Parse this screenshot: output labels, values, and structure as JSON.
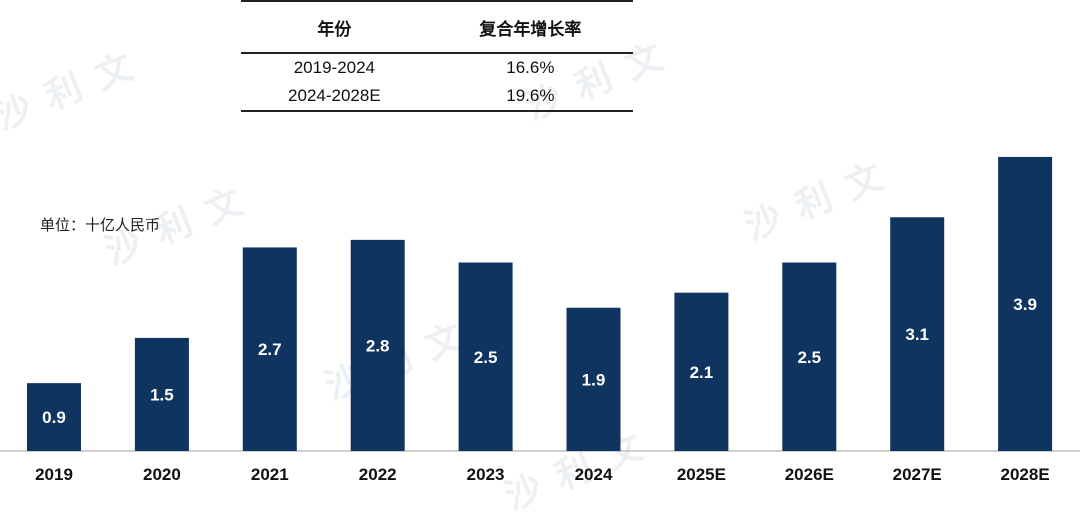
{
  "cagr_table": {
    "headers": [
      "年份",
      "复合年增长率"
    ],
    "rows": [
      [
        "2019-2024",
        "16.6%"
      ],
      [
        "2024-2028E",
        "19.6%"
      ]
    ]
  },
  "unit_label": "单位：十亿人民币",
  "watermark": "沙利文",
  "colors": {
    "bar": "#0f3460",
    "axis": "#bfbfbf"
  },
  "chart_data": {
    "type": "bar",
    "categories": [
      "2019",
      "2020",
      "2021",
      "2022",
      "2023",
      "2024",
      "2025E",
      "2026E",
      "2027E",
      "2028E"
    ],
    "values": [
      0.9,
      1.5,
      2.7,
      2.8,
      2.5,
      1.9,
      2.1,
      2.5,
      3.1,
      3.9
    ],
    "data_labels": [
      "0.9",
      "1.5",
      "2.7",
      "2.8",
      "2.5",
      "1.9",
      "2.1",
      "2.5",
      "3.1",
      "3.9"
    ],
    "ylim": [
      0,
      4.0
    ],
    "grid": false,
    "legend": "none"
  }
}
